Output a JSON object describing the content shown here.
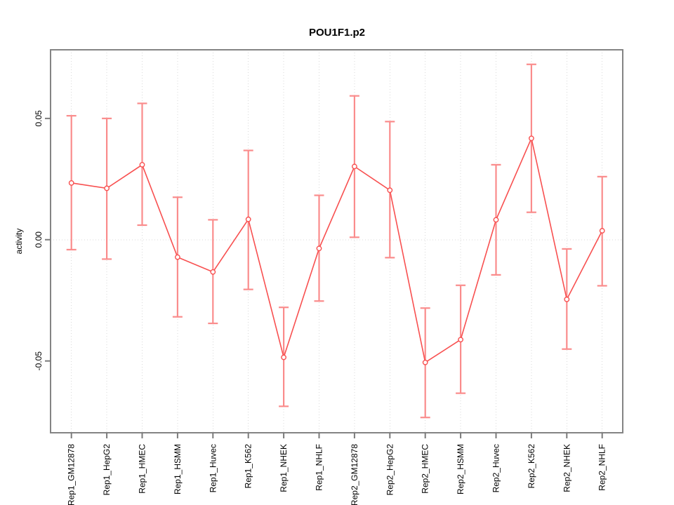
{
  "chart_data": {
    "type": "line",
    "title": "POU1F1.p2",
    "xlabel": "",
    "ylabel": "activity",
    "categories": [
      "Rep1_GM12878",
      "Rep1_HepG2",
      "Rep1_HMEC",
      "Rep1_HSMM",
      "Rep1_Huvec",
      "Rep1_K562",
      "Rep1_NHEK",
      "Rep1_NHLF",
      "Rep2_GM12878",
      "Rep2_HepG2",
      "Rep2_HMEC",
      "Rep2_HSMM",
      "Rep2_Huvec",
      "Rep2_K562",
      "Rep2_NHEK",
      "Rep2_NHLF"
    ],
    "series": [
      {
        "name": "activity",
        "values": [
          0.0234,
          0.0212,
          0.0309,
          -0.0072,
          -0.0133,
          0.0084,
          -0.0485,
          -0.0036,
          0.0302,
          0.0204,
          -0.0506,
          -0.0412,
          0.0082,
          0.0418,
          -0.0246,
          0.0037
        ],
        "error_upper": [
          0.0511,
          0.05,
          0.0562,
          0.0175,
          0.0082,
          0.0368,
          -0.0279,
          0.0183,
          0.0593,
          0.0487,
          -0.0282,
          -0.0188,
          0.0309,
          0.0723,
          -0.0038,
          0.026
        ],
        "error_lower": [
          -0.0041,
          -0.008,
          0.006,
          -0.0318,
          -0.0345,
          -0.0205,
          -0.0687,
          -0.0253,
          0.001,
          -0.0074,
          -0.0733,
          -0.0633,
          -0.0145,
          0.0113,
          -0.0451,
          -0.019
        ]
      }
    ],
    "ylim": [
      -0.0796,
      0.0783
    ],
    "yticks": [
      {
        "value": 0.05,
        "label": "0.05"
      },
      {
        "value": 0.0,
        "label": "0.00"
      },
      {
        "value": -0.05,
        "label": "-0.05"
      }
    ],
    "marker": "open-circle",
    "has_error_bars": true,
    "legend": "none",
    "grid": {
      "vertical_per_category": true,
      "horizontal_zero_line": true,
      "style": "dotted"
    }
  },
  "colors": {
    "point_line": "#f85050",
    "error_bar": "#fa8c8c",
    "grid": "#d9d9d9",
    "box": "#848484",
    "tick": "#7a7a7a",
    "text": "#000000",
    "background": "#ffffff"
  }
}
